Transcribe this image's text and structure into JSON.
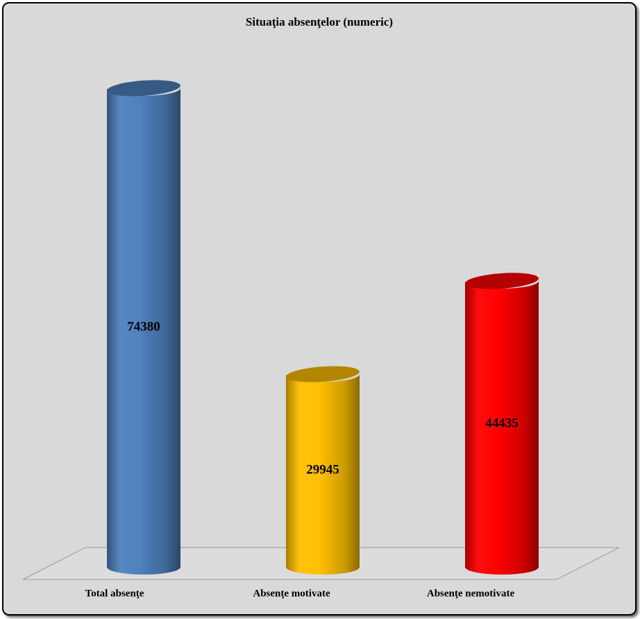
{
  "chart_data": {
    "type": "bar",
    "title": "Situaţia absenţelor (numeric)",
    "categories": [
      "Total absenţe",
      "Absenţe motivate",
      "Absenţe nemotivate"
    ],
    "values": [
      74380,
      29945,
      44435
    ],
    "data_labels": [
      "74380",
      "29945",
      "44435"
    ],
    "colors": [
      "#4f81bd",
      "#ffc000",
      "#ff0000"
    ],
    "style": "3d-cylinder",
    "grid": false,
    "legend": "none",
    "xlabel": "",
    "ylabel": ""
  }
}
